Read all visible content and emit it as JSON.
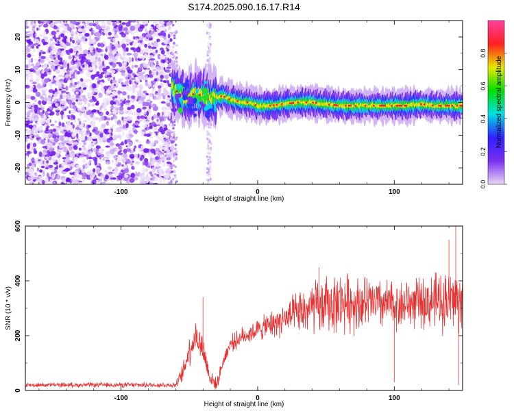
{
  "figure": {
    "title": "S174.2025.090.16.17.R14"
  },
  "chart_data": [
    {
      "type": "heatmap",
      "xlabel": "Height of straight line (km)",
      "ylabel": "Frequency (Hz)",
      "xlim": [
        -170,
        150
      ],
      "ylim": [
        -25,
        25
      ],
      "x_ticks": [
        -100,
        0,
        100
      ],
      "y_ticks": [
        -20,
        -10,
        0,
        10,
        20
      ],
      "grid": false,
      "noise_region_x": [
        -170,
        -62
      ],
      "noise_gap_x": [
        -62,
        -36
      ],
      "noise_strip_x": [
        -37,
        -34
      ],
      "ridge": [
        {
          "x": -60,
          "y": 4
        },
        {
          "x": -55,
          "y": 2
        },
        {
          "x": -50,
          "y": 1
        },
        {
          "x": -45,
          "y": 3
        },
        {
          "x": -40,
          "y": 2
        },
        {
          "x": -35,
          "y": 1
        },
        {
          "x": -30,
          "y": 1.5
        },
        {
          "x": -25,
          "y": 2
        },
        {
          "x": -20,
          "y": 1
        },
        {
          "x": -15,
          "y": 0.5
        },
        {
          "x": -10,
          "y": 0
        },
        {
          "x": -5,
          "y": 0
        },
        {
          "x": 0,
          "y": -1
        },
        {
          "x": 10,
          "y": -1
        },
        {
          "x": 20,
          "y": -0.5
        },
        {
          "x": 30,
          "y": 0
        },
        {
          "x": 40,
          "y": 0
        },
        {
          "x": 50,
          "y": -0.5
        },
        {
          "x": 60,
          "y": -1
        },
        {
          "x": 70,
          "y": -1
        },
        {
          "x": 80,
          "y": -1
        },
        {
          "x": 90,
          "y": -1
        },
        {
          "x": 100,
          "y": -1
        },
        {
          "x": 110,
          "y": -1
        },
        {
          "x": 120,
          "y": -0.5
        },
        {
          "x": 130,
          "y": -1
        },
        {
          "x": 140,
          "y": -1
        },
        {
          "x": 150,
          "y": -1
        }
      ],
      "colorbar": {
        "label": "Normalized spectral amplitude",
        "range": [
          0,
          1
        ],
        "ticks": [
          "0.0",
          "0.2",
          "0.4",
          "0.6",
          "0.8"
        ],
        "colors": [
          "#e8d8f8",
          "#7a30f0",
          "#3020ff",
          "#00e0e8",
          "#00e000",
          "#e8e800",
          "#ff2020",
          "#ff40a0"
        ]
      }
    },
    {
      "type": "line",
      "xlabel": "Height of straight line (km)",
      "ylabel": "SNR (10 * v/v)",
      "xlim": [
        -170,
        150
      ],
      "ylim": [
        0,
        600
      ],
      "x_ticks": [
        -100,
        0,
        100
      ],
      "y_ticks": [
        0,
        200,
        400,
        600
      ],
      "grid": false,
      "series": [
        {
          "color": "#e83030",
          "trend": [
            {
              "x": -170,
              "y": 20
            },
            {
              "x": -60,
              "y": 20
            },
            {
              "x": -55,
              "y": 60
            },
            {
              "x": -50,
              "y": 150
            },
            {
              "x": -45,
              "y": 200
            },
            {
              "x": -40,
              "y": 150
            },
            {
              "x": -35,
              "y": 50
            },
            {
              "x": -30,
              "y": 20
            },
            {
              "x": -25,
              "y": 110
            },
            {
              "x": -20,
              "y": 170
            },
            {
              "x": -10,
              "y": 200
            },
            {
              "x": 0,
              "y": 220
            },
            {
              "x": 10,
              "y": 240
            },
            {
              "x": 20,
              "y": 260
            },
            {
              "x": 30,
              "y": 280
            },
            {
              "x": 40,
              "y": 300
            },
            {
              "x": 60,
              "y": 320
            },
            {
              "x": 80,
              "y": 320
            },
            {
              "x": 100,
              "y": 310
            },
            {
              "x": 120,
              "y": 320
            },
            {
              "x": 140,
              "y": 330
            },
            {
              "x": 150,
              "y": 330
            }
          ],
          "spread": [
            {
              "x": -170,
              "y": 8
            },
            {
              "x": -60,
              "y": 10
            },
            {
              "x": -50,
              "y": 60
            },
            {
              "x": -40,
              "y": 60
            },
            {
              "x": -30,
              "y": 20
            },
            {
              "x": -20,
              "y": 30
            },
            {
              "x": 0,
              "y": 40
            },
            {
              "x": 20,
              "y": 60
            },
            {
              "x": 40,
              "y": 100
            },
            {
              "x": 60,
              "y": 110
            },
            {
              "x": 100,
              "y": 90
            },
            {
              "x": 120,
              "y": 90
            },
            {
              "x": 140,
              "y": 120
            },
            {
              "x": 150,
              "y": 120
            }
          ],
          "peaks": [
            {
              "x": -40,
              "y": 340
            },
            {
              "x": 100,
              "y": 30
            },
            {
              "x": 145,
              "y": 600
            },
            {
              "x": 147,
              "y": 20
            },
            {
              "x": 140,
              "y": 550
            },
            {
              "x": 45,
              "y": 450
            }
          ]
        }
      ]
    }
  ]
}
